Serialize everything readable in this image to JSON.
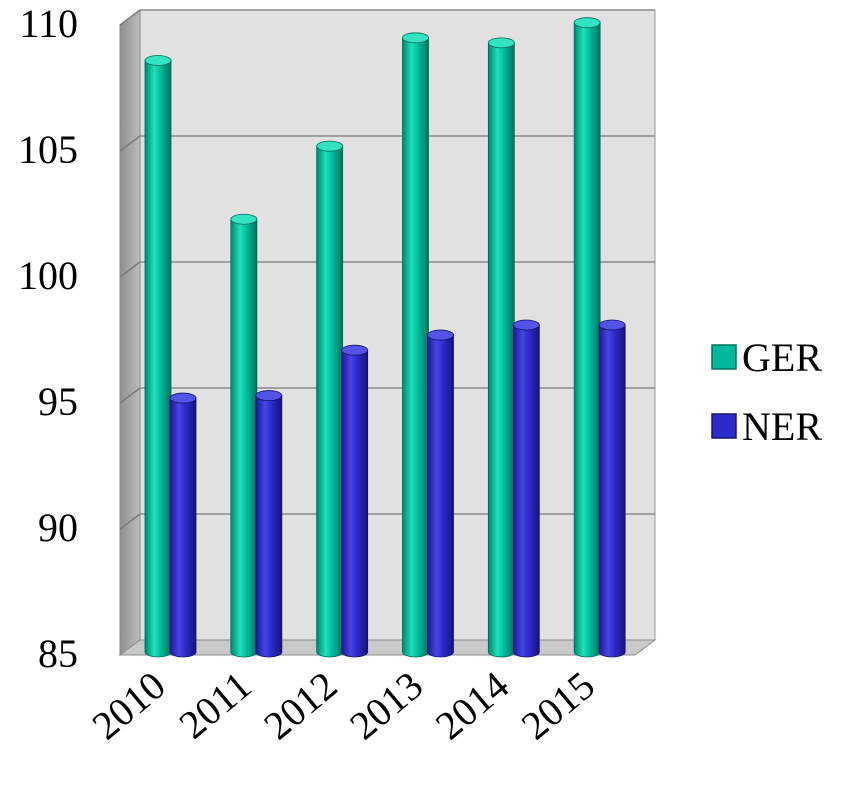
{
  "chart_data": {
    "type": "bar",
    "style": "3d-cylinder",
    "title": "",
    "xlabel": "",
    "ylabel": "",
    "categories": [
      "2010",
      "2011",
      "2012",
      "2013",
      "2014",
      "2015"
    ],
    "ylim": [
      85,
      110
    ],
    "yticks": [
      85,
      90,
      95,
      100,
      105,
      110
    ],
    "grid": true,
    "legend_position": "right",
    "series": [
      {
        "name": "GER",
        "color": "#00B99A",
        "values": [
          107.6,
          101.3,
          104.2,
          108.5,
          108.3,
          109.1
        ]
      },
      {
        "name": "NER",
        "color": "#2D2ACB",
        "values": [
          94.6,
          94.7,
          96.5,
          97.1,
          97.5,
          97.5
        ]
      }
    ]
  }
}
